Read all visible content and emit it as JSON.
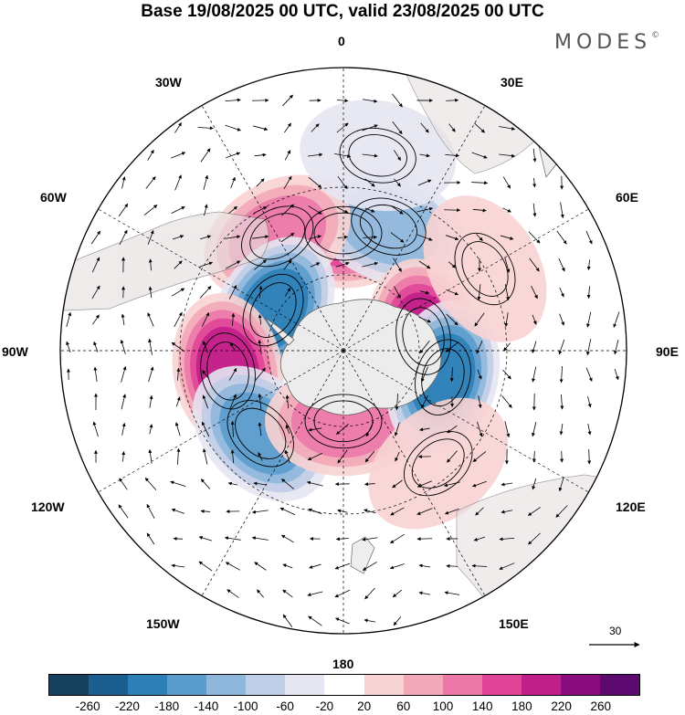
{
  "header": {
    "title": "Base 19/08/2025 00 UTC, valid 23/08/2025 00 UTC",
    "brand": "MODES",
    "brand_mark": "©"
  },
  "longitude_labels": {
    "n0": "0",
    "e30": "30E",
    "e60": "60E",
    "e90": "90E",
    "e120": "120E",
    "e150": "150E",
    "s180": "180",
    "w150": "150W",
    "w120": "120W",
    "w90": "90W",
    "w60": "60W",
    "w30": "30W"
  },
  "reference_vector": {
    "label": "30"
  },
  "colorbar": {
    "colors": [
      "#16405e",
      "#1a5f8f",
      "#2d7fb8",
      "#5a9ccc",
      "#8fb7dc",
      "#bfcde6",
      "#e5e6f2",
      "#ffffff",
      "#f8d3d3",
      "#f2a8b8",
      "#ec78a8",
      "#e04598",
      "#c01f8a",
      "#8a0d7d",
      "#5c0a6f"
    ],
    "ticks": [
      "-260",
      "-220",
      "-180",
      "-140",
      "-100",
      "-60",
      "-20",
      "20",
      "60",
      "100",
      "140",
      "180",
      "220",
      "260"
    ]
  },
  "anomaly_centers": [
    {
      "lon": 0,
      "lat": -45,
      "value": 170
    },
    {
      "lon": 20,
      "lat": -40,
      "value": -120
    },
    {
      "lon": -30,
      "lat": -40,
      "value": 130
    },
    {
      "lon": -60,
      "lat": -58,
      "value": -210
    },
    {
      "lon": -100,
      "lat": -45,
      "value": 200
    },
    {
      "lon": -135,
      "lat": -45,
      "value": -160
    },
    {
      "lon": 180,
      "lat": -62,
      "value": 110
    },
    {
      "lon": 80,
      "lat": -58,
      "value": 210
    },
    {
      "lon": 105,
      "lat": -50,
      "value": -190
    },
    {
      "lon": 10,
      "lat": -20,
      "value": -60
    },
    {
      "lon": 60,
      "lat": -30,
      "value": 40
    },
    {
      "lon": 140,
      "lat": -35,
      "value": 30
    }
  ]
}
